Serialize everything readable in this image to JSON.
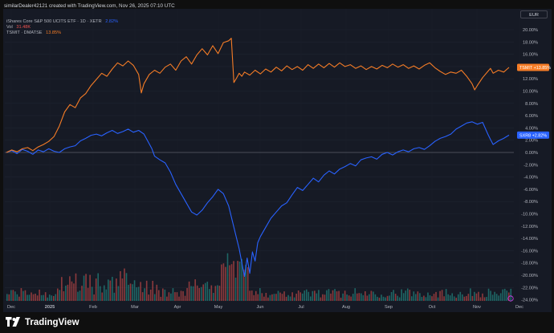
{
  "header": {
    "attribution": "similarDealer42121 created with TradingView.com, Nov 26, 2025 07:10 UTC"
  },
  "currency_button": "EUR",
  "legend": {
    "main": {
      "name": "iShares Core S&P 500 UCITS ETF · 1D · XETR",
      "value": "2.82%",
      "color": "#2962ff"
    },
    "volume": {
      "name": "Vol",
      "value": "31.48K",
      "color": "#ef5350"
    },
    "compare": {
      "name": "TSMIT · DMATSE",
      "value": "13.85%",
      "color": "#f57c26"
    }
  },
  "brand": {
    "name": "TradingView"
  },
  "chart_data": {
    "type": "line",
    "ylabel_format": "percent",
    "ylim": [
      -25,
      22
    ],
    "y_ticks": [
      20,
      18,
      16,
      14,
      12,
      10,
      8,
      6,
      4,
      2,
      0,
      -2,
      -4,
      -6,
      -8,
      -10,
      -12,
      -14,
      -16,
      -18,
      -20,
      -22,
      -24
    ],
    "x_ticks": [
      "Dec",
      "2025",
      "Feb",
      "Mar",
      "Apr",
      "May",
      "Jun",
      "Jul",
      "Aug",
      "Sep",
      "Oct",
      "Nov",
      "Dec"
    ],
    "baseline": 0,
    "series": [
      {
        "name": "SXR8",
        "color": "#2962ff",
        "last_label": "+2.82%",
        "points": [
          [
            0,
            0.0
          ],
          [
            4,
            0.3
          ],
          [
            8,
            -0.2
          ],
          [
            12,
            0.5
          ],
          [
            16,
            0.2
          ],
          [
            20,
            -0.3
          ],
          [
            24,
            0.4
          ],
          [
            28,
            0.1
          ],
          [
            32,
            0.6
          ],
          [
            36,
            0.2
          ],
          [
            40,
            0.0
          ],
          [
            44,
            0.6
          ],
          [
            48,
            0.9
          ],
          [
            52,
            1.1
          ],
          [
            56,
            1.9
          ],
          [
            60,
            2.3
          ],
          [
            64,
            2.8
          ],
          [
            68,
            3.0
          ],
          [
            72,
            2.7
          ],
          [
            76,
            3.2
          ],
          [
            80,
            3.6
          ],
          [
            84,
            3.1
          ],
          [
            88,
            3.4
          ],
          [
            92,
            3.8
          ],
          [
            96,
            3.3
          ],
          [
            100,
            3.6
          ],
          [
            104,
            3.0
          ],
          [
            108,
            1.4
          ],
          [
            110,
            0.6
          ],
          [
            112,
            -0.6
          ],
          [
            116,
            -1.2
          ],
          [
            120,
            -1.7
          ],
          [
            124,
            -3.2
          ],
          [
            128,
            -5.2
          ],
          [
            132,
            -6.7
          ],
          [
            136,
            -8.2
          ],
          [
            140,
            -9.7
          ],
          [
            144,
            -10.2
          ],
          [
            148,
            -9.4
          ],
          [
            152,
            -8.2
          ],
          [
            156,
            -7.2
          ],
          [
            160,
            -6.0
          ],
          [
            164,
            -6.7
          ],
          [
            168,
            -8.7
          ],
          [
            172,
            -12.2
          ],
          [
            176,
            -15.7
          ],
          [
            178,
            -18.0
          ],
          [
            180,
            -20.2
          ],
          [
            182,
            -17.2
          ],
          [
            184,
            -19.7
          ],
          [
            186,
            -16.2
          ],
          [
            188,
            -17.7
          ],
          [
            190,
            -14.7
          ],
          [
            192,
            -13.7
          ],
          [
            196,
            -12.2
          ],
          [
            200,
            -10.7
          ],
          [
            204,
            -9.7
          ],
          [
            208,
            -8.7
          ],
          [
            212,
            -8.2
          ],
          [
            216,
            -6.9
          ],
          [
            220,
            -5.7
          ],
          [
            224,
            -6.2
          ],
          [
            228,
            -5.2
          ],
          [
            232,
            -4.2
          ],
          [
            236,
            -4.8
          ],
          [
            240,
            -3.7
          ],
          [
            244,
            -3.0
          ],
          [
            248,
            -3.5
          ],
          [
            252,
            -2.7
          ],
          [
            256,
            -2.3
          ],
          [
            260,
            -1.8
          ],
          [
            264,
            -2.2
          ],
          [
            268,
            -1.2
          ],
          [
            272,
            -0.9
          ],
          [
            276,
            -0.7
          ],
          [
            280,
            -1.1
          ],
          [
            284,
            -0.3
          ],
          [
            288,
            0.0
          ],
          [
            292,
            -0.4
          ],
          [
            296,
            0.1
          ],
          [
            300,
            0.4
          ],
          [
            304,
            0.1
          ],
          [
            308,
            0.6
          ],
          [
            312,
            0.8
          ],
          [
            316,
            0.5
          ],
          [
            320,
            1.1
          ],
          [
            324,
            1.8
          ],
          [
            328,
            2.3
          ],
          [
            332,
            2.6
          ],
          [
            336,
            3.0
          ],
          [
            340,
            3.8
          ],
          [
            344,
            4.3
          ],
          [
            348,
            4.8
          ],
          [
            352,
            5.0
          ],
          [
            356,
            4.6
          ],
          [
            360,
            4.9
          ],
          [
            364,
            3.0
          ],
          [
            366,
            2.1
          ],
          [
            368,
            1.3
          ],
          [
            372,
            1.9
          ],
          [
            376,
            2.3
          ],
          [
            380,
            2.82
          ]
        ]
      },
      {
        "name": "TSMIT",
        "color": "#f57c26",
        "last_label": "+13.85%",
        "points": [
          [
            0,
            0.0
          ],
          [
            4,
            0.4
          ],
          [
            8,
            0.1
          ],
          [
            12,
            0.6
          ],
          [
            16,
            0.8
          ],
          [
            20,
            0.3
          ],
          [
            24,
            0.9
          ],
          [
            28,
            1.3
          ],
          [
            32,
            1.8
          ],
          [
            36,
            2.6
          ],
          [
            40,
            4.3
          ],
          [
            44,
            6.6
          ],
          [
            48,
            7.8
          ],
          [
            52,
            7.3
          ],
          [
            56,
            8.9
          ],
          [
            60,
            9.6
          ],
          [
            64,
            10.9
          ],
          [
            68,
            11.9
          ],
          [
            72,
            12.9
          ],
          [
            76,
            12.4
          ],
          [
            80,
            13.6
          ],
          [
            84,
            14.6
          ],
          [
            88,
            14.1
          ],
          [
            92,
            14.9
          ],
          [
            96,
            14.2
          ],
          [
            100,
            12.7
          ],
          [
            102,
            9.7
          ],
          [
            104,
            11.2
          ],
          [
            108,
            12.7
          ],
          [
            112,
            13.4
          ],
          [
            116,
            12.9
          ],
          [
            120,
            13.9
          ],
          [
            124,
            14.4
          ],
          [
            128,
            13.4
          ],
          [
            132,
            14.9
          ],
          [
            136,
            15.6
          ],
          [
            140,
            14.4
          ],
          [
            144,
            15.9
          ],
          [
            148,
            16.9
          ],
          [
            152,
            15.9
          ],
          [
            156,
            17.4
          ],
          [
            160,
            16.1
          ],
          [
            164,
            17.9
          ],
          [
            168,
            18.2
          ],
          [
            170,
            18.6
          ],
          [
            172,
            11.4
          ],
          [
            174,
            12.1
          ],
          [
            176,
            12.9
          ],
          [
            178,
            12.4
          ],
          [
            180,
            13.1
          ],
          [
            184,
            12.6
          ],
          [
            188,
            13.4
          ],
          [
            192,
            12.8
          ],
          [
            196,
            13.6
          ],
          [
            200,
            13.1
          ],
          [
            204,
            13.9
          ],
          [
            208,
            13.3
          ],
          [
            212,
            14.1
          ],
          [
            216,
            13.5
          ],
          [
            220,
            14.0
          ],
          [
            224,
            13.4
          ],
          [
            228,
            14.3
          ],
          [
            232,
            13.7
          ],
          [
            236,
            14.4
          ],
          [
            240,
            13.8
          ],
          [
            244,
            14.5
          ],
          [
            248,
            13.9
          ],
          [
            252,
            14.6
          ],
          [
            256,
            14.0
          ],
          [
            260,
            14.3
          ],
          [
            264,
            13.7
          ],
          [
            268,
            14.1
          ],
          [
            272,
            13.5
          ],
          [
            276,
            14.0
          ],
          [
            280,
            13.6
          ],
          [
            284,
            14.2
          ],
          [
            288,
            13.8
          ],
          [
            292,
            14.4
          ],
          [
            296,
            13.9
          ],
          [
            300,
            14.3
          ],
          [
            304,
            13.7
          ],
          [
            308,
            14.1
          ],
          [
            312,
            13.6
          ],
          [
            316,
            14.2
          ],
          [
            320,
            14.6
          ],
          [
            324,
            13.8
          ],
          [
            328,
            13.2
          ],
          [
            332,
            12.7
          ],
          [
            336,
            13.1
          ],
          [
            340,
            12.9
          ],
          [
            344,
            13.4
          ],
          [
            348,
            12.4
          ],
          [
            352,
            11.2
          ],
          [
            354,
            10.2
          ],
          [
            356,
            10.9
          ],
          [
            360,
            12.2
          ],
          [
            364,
            13.2
          ],
          [
            366,
            13.7
          ],
          [
            368,
            12.9
          ],
          [
            372,
            13.4
          ],
          [
            376,
            13.1
          ],
          [
            380,
            13.85
          ]
        ]
      }
    ],
    "volume": {
      "up_color": "#26a69a",
      "down_color": "#ef5350"
    }
  }
}
